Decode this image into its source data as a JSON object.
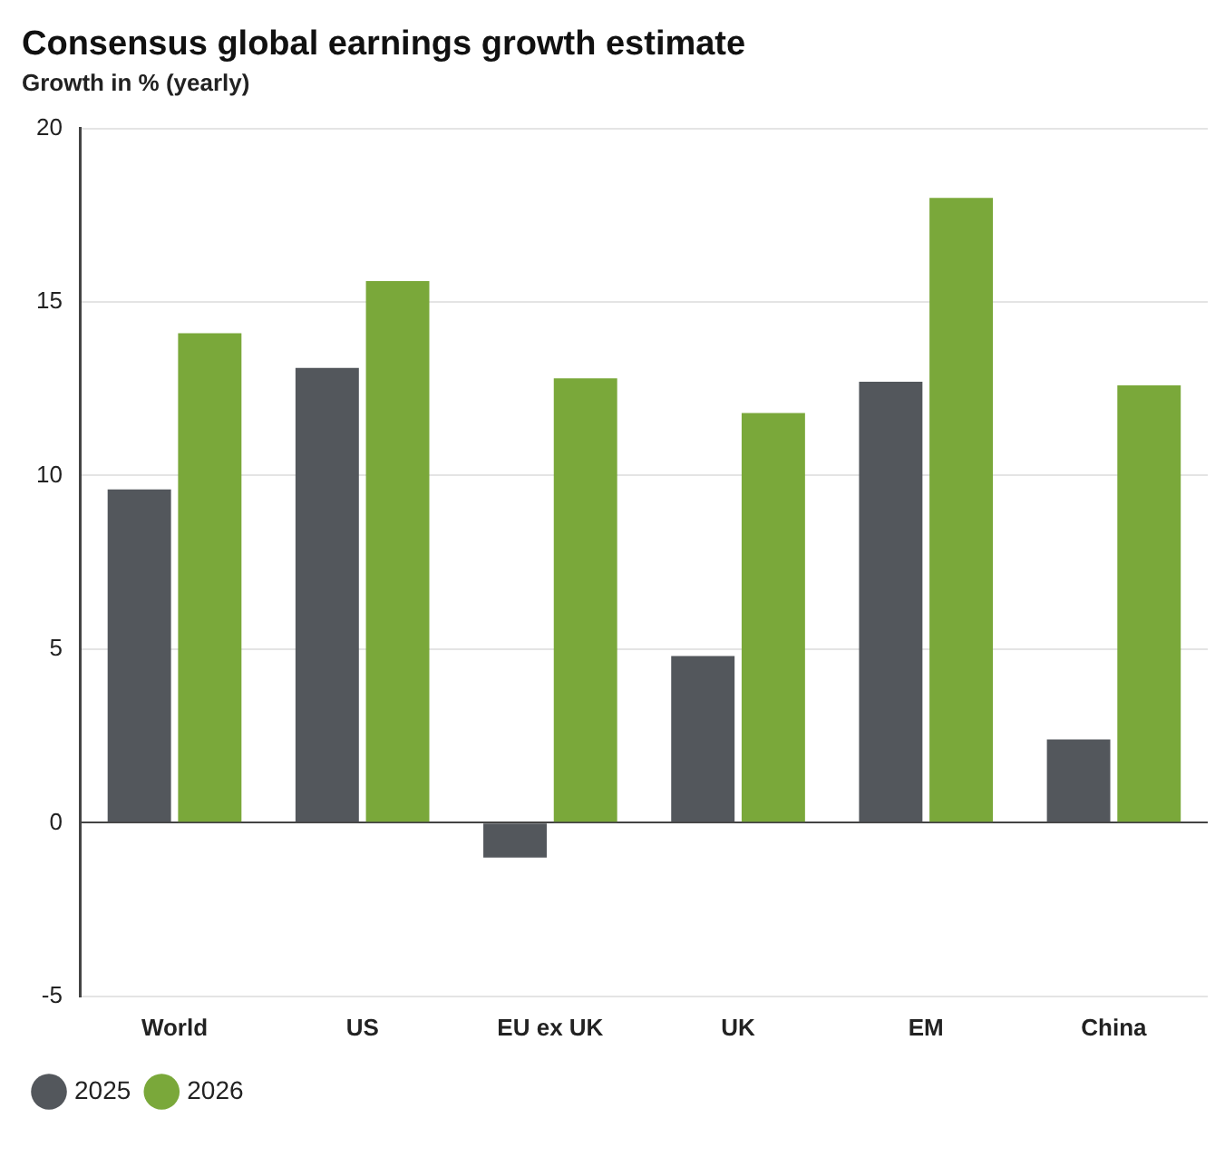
{
  "chart_data": {
    "type": "bar",
    "title": "Consensus global earnings growth estimate",
    "subtitle": "Growth in % (yearly)",
    "categories": [
      "World",
      "US",
      "EU ex UK",
      "UK",
      "EM",
      "China"
    ],
    "series": [
      {
        "name": "2025",
        "color": "#53575c",
        "values": [
          9.6,
          13.1,
          -1.0,
          4.8,
          12.7,
          2.4
        ]
      },
      {
        "name": "2026",
        "color": "#7aa83a",
        "values": [
          14.1,
          15.6,
          12.8,
          11.8,
          18.0,
          12.6
        ]
      }
    ],
    "ylim": [
      -5,
      20
    ],
    "yticks": [
      -5,
      0,
      5,
      10,
      15,
      20
    ],
    "grid": "y",
    "legend": "bottom left"
  }
}
